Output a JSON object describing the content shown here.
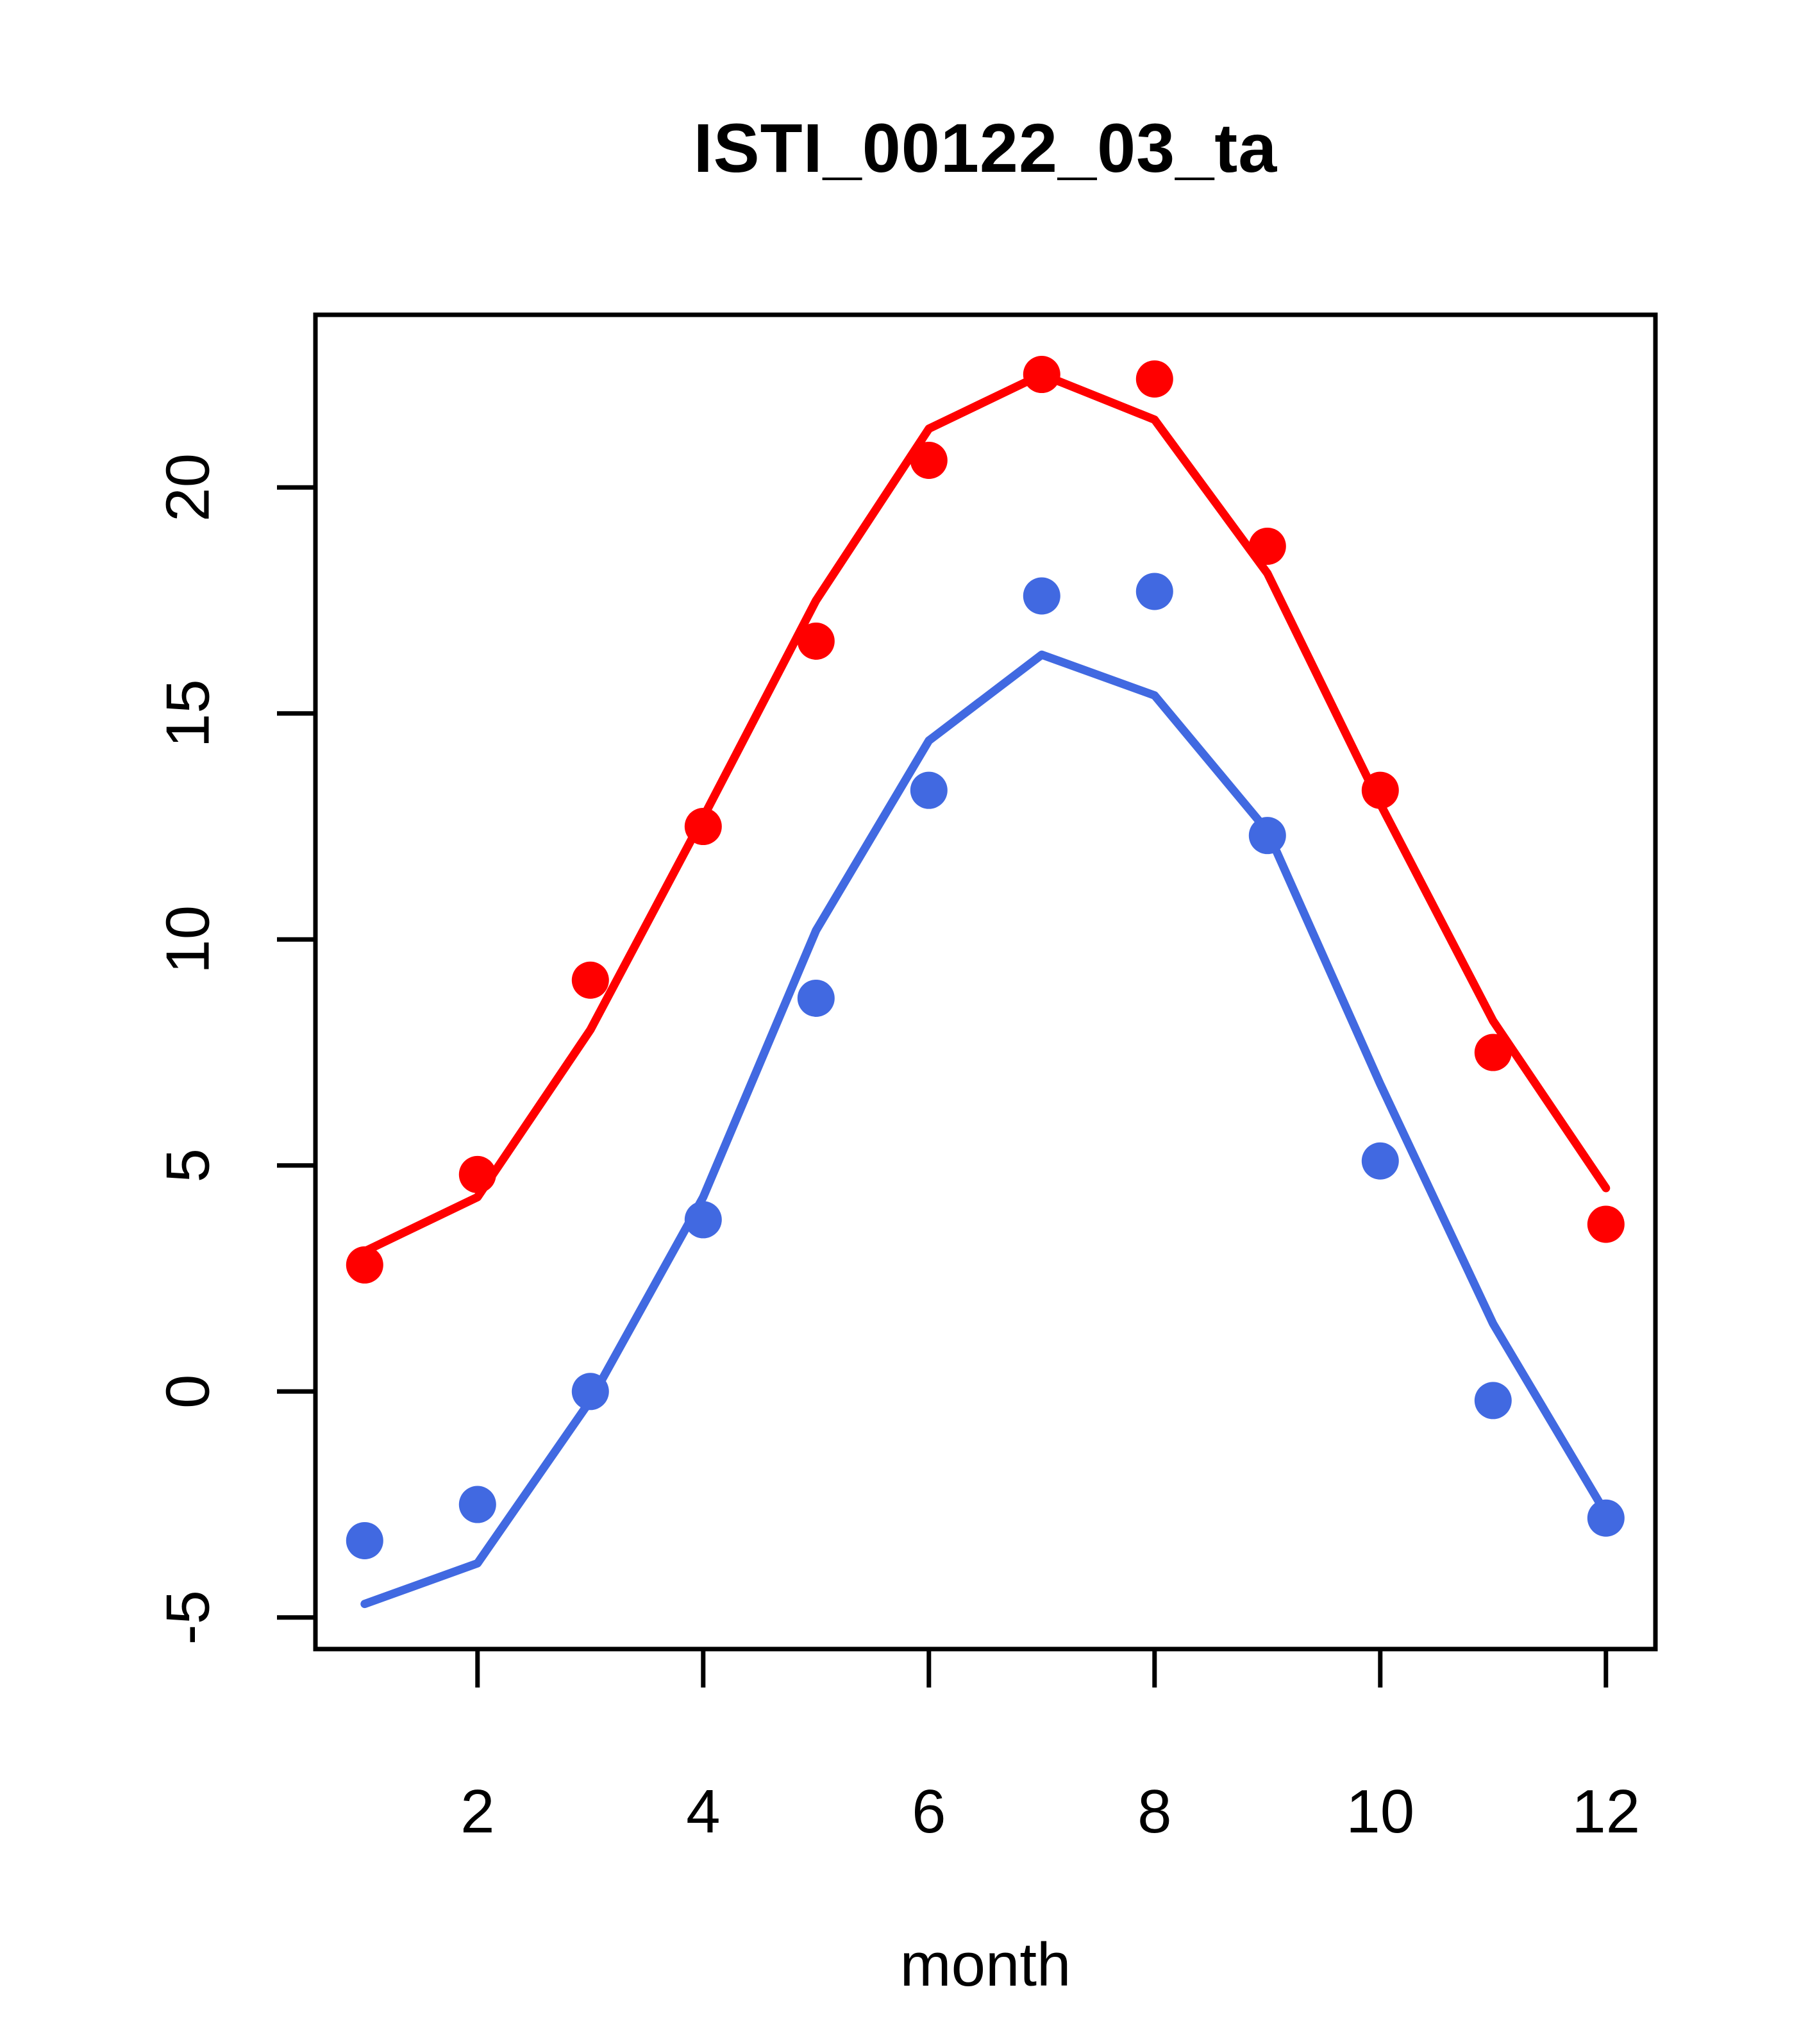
{
  "title": "ISTI_00122_03_ta",
  "colors": {
    "red_series": "#FF0000",
    "blue_series": "#4169E1",
    "axis": "#000000",
    "background": "#FFFFFF"
  },
  "chart_data": {
    "type": "line",
    "title": "ISTI_00122_03_ta",
    "xlabel": "month",
    "ylabel": "",
    "x": [
      1,
      2,
      3,
      4,
      5,
      6,
      7,
      8,
      9,
      10,
      11,
      12
    ],
    "x_ticks": [
      2,
      4,
      6,
      8,
      10,
      12
    ],
    "x_tick_labels": [
      "2",
      "4",
      "6",
      "8",
      "10",
      "12"
    ],
    "y_ticks": [
      -5,
      0,
      5,
      10,
      15,
      20
    ],
    "y_tick_labels": [
      "-5",
      "0",
      "5",
      "10",
      "15",
      "20"
    ],
    "xlim": [
      0.56,
      12.44
    ],
    "ylim": [
      -5.7,
      23.8
    ],
    "grid": false,
    "legend": "none",
    "series": [
      {
        "name": "red-points",
        "style": "scatter",
        "color": "#FF0000",
        "values": [
          2.8,
          4.8,
          9.1,
          12.5,
          16.6,
          20.6,
          22.5,
          22.4,
          18.7,
          13.3,
          7.5,
          3.7
        ]
      },
      {
        "name": "blue-points",
        "style": "scatter",
        "color": "#4169E1",
        "values": [
          -3.3,
          -2.5,
          0.0,
          3.8,
          8.7,
          13.3,
          17.6,
          17.7,
          12.3,
          5.1,
          -0.2,
          -2.8
        ]
      },
      {
        "name": "red-line",
        "style": "line",
        "color": "#FF0000",
        "values": [
          3.1,
          4.3,
          8.0,
          12.7,
          17.5,
          21.3,
          22.5,
          21.5,
          18.1,
          13.0,
          8.2,
          4.5
        ]
      },
      {
        "name": "blue-line",
        "style": "line",
        "color": "#4169E1",
        "values": [
          -4.7,
          -3.8,
          -0.2,
          4.3,
          10.2,
          14.4,
          16.3,
          15.4,
          12.4,
          6.8,
          1.5,
          -2.7
        ]
      }
    ]
  }
}
